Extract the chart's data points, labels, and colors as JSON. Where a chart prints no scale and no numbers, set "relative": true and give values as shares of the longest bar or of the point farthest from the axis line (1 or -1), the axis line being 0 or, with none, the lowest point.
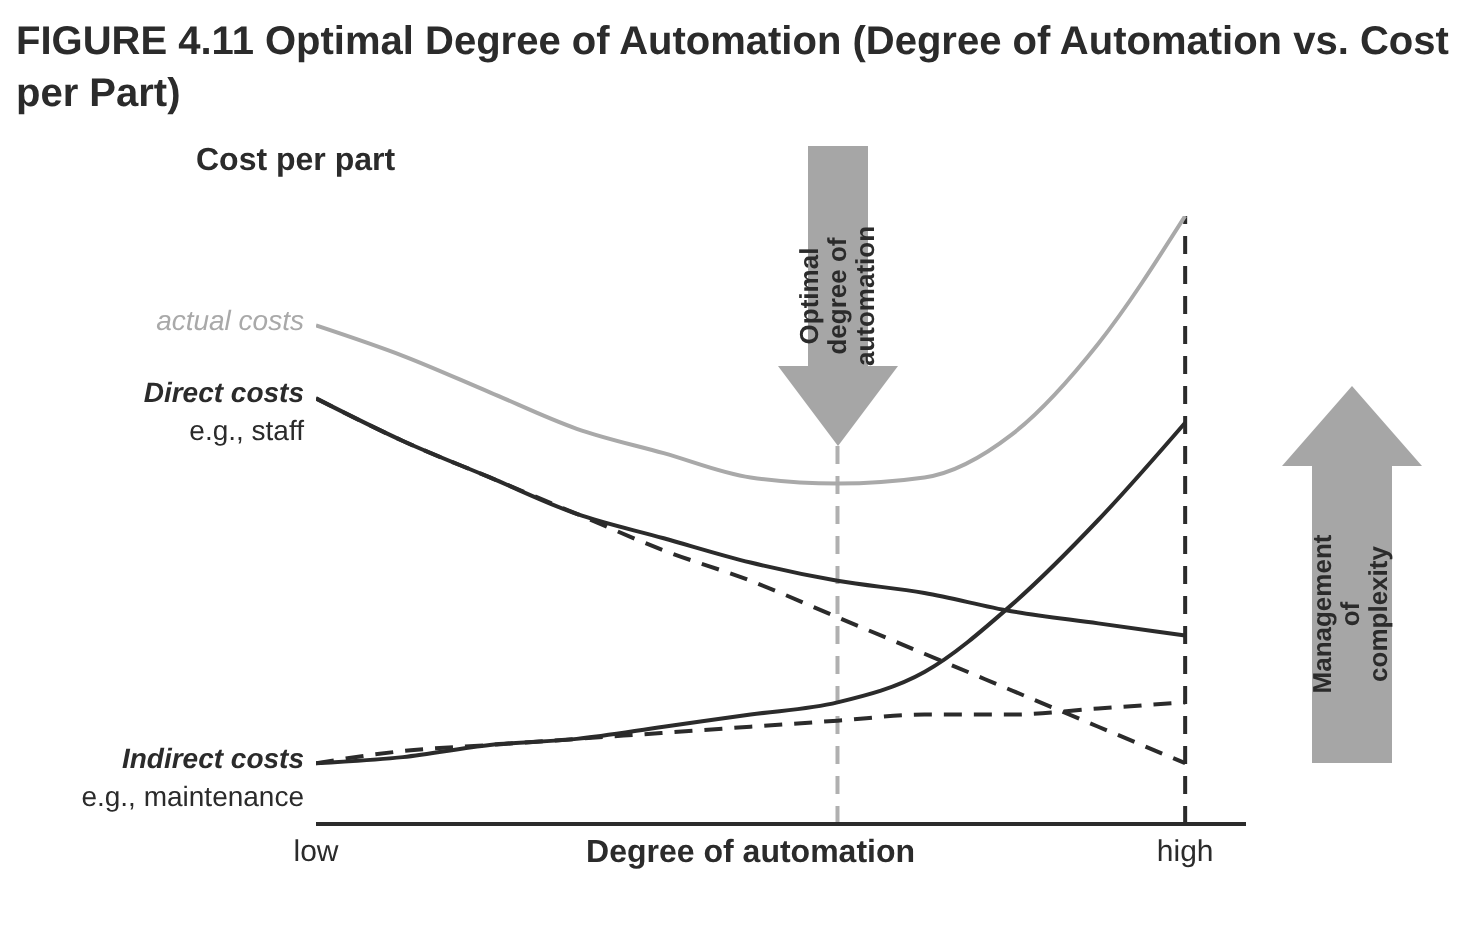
{
  "chart_data": {
    "type": "line",
    "relative": true,
    "title": "FIGURE 4.11  Optimal Degree of Automation (Degree of Automation vs. Cost per Part)",
    "xlabel": "Degree of automation",
    "ylabel": "Cost per part",
    "categories": [
      "low",
      null,
      null,
      null,
      null,
      null,
      null,
      null,
      null,
      null,
      "high"
    ],
    "marker": "none",
    "series": [
      {
        "name": "actual costs",
        "color": "#a9a9a9",
        "line_style": "solid",
        "values": [
          0.82,
          0.77,
          0.71,
          0.65,
          0.61,
          0.57,
          0.56,
          0.57,
          0.64,
          0.79,
          1.0
        ]
      },
      {
        "name": "Direct costs",
        "color": "#2b2b2b",
        "line_style": "solid",
        "values": [
          0.7,
          0.63,
          0.57,
          0.51,
          0.47,
          0.43,
          0.4,
          0.38,
          0.35,
          0.33,
          0.31
        ]
      },
      {
        "color": "#2b2b2b",
        "line_style": "dashed",
        "values": [
          0.7,
          0.63,
          0.57,
          0.51,
          0.45,
          0.4,
          0.34,
          0.28,
          0.22,
          0.16,
          0.1
        ]
      },
      {
        "name": "Indirect costs",
        "color": "#2b2b2b",
        "line_style": "solid",
        "values": [
          0.1,
          0.11,
          0.13,
          0.14,
          0.16,
          0.18,
          0.2,
          0.25,
          0.36,
          0.5,
          0.66
        ]
      },
      {
        "color": "#2b2b2b",
        "line_style": "dashed",
        "values": [
          0.1,
          0.12,
          0.13,
          0.14,
          0.15,
          0.16,
          0.17,
          0.18,
          0.18,
          0.19,
          0.2
        ]
      }
    ],
    "ref_lines": [
      {
        "axis": "x",
        "value": null,
        "label": "Optimal degree of automation",
        "color": "#b0b0b0",
        "line_style": "dashed"
      },
      {
        "axis": "x",
        "value": "high",
        "color": "#2b2b2b",
        "line_style": "dashed"
      }
    ],
    "annotations": [
      {
        "text": "e.g., staff",
        "x": "low",
        "y": 0.7
      },
      {
        "text": "e.g., maintenance",
        "x": "low",
        "y": 0.1
      },
      "Management of complexity"
    ]
  }
}
